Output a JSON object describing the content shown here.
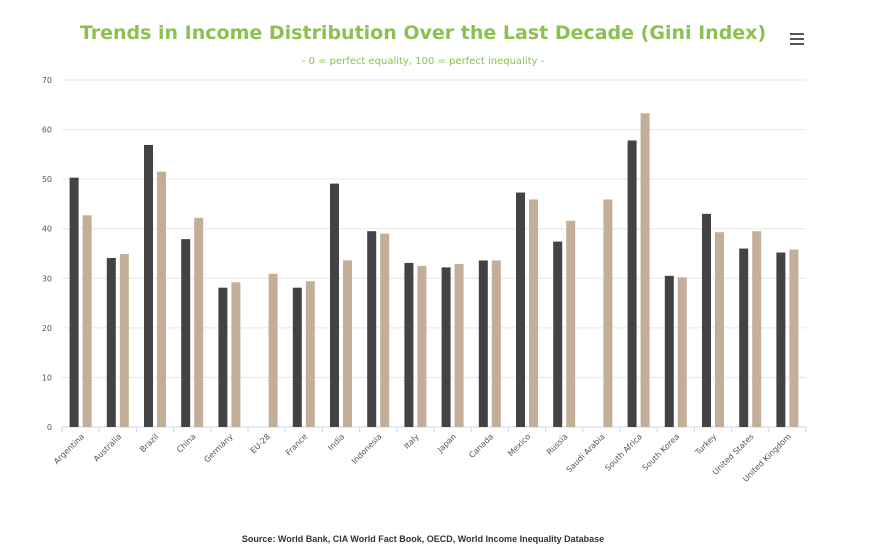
{
  "chart_data": {
    "type": "bar",
    "title": "Trends in Income Distribution Over the Last Decade (Gini Index)",
    "subtitle": "- 0 = perfect equality, 100 = perfect inequality -",
    "source": "Source: World Bank, CIA World Fact Book, OECD, World Income Inequality Database",
    "xlabel": "",
    "ylabel": "",
    "ylim": [
      0,
      70
    ],
    "yticks": [
      0,
      10,
      20,
      30,
      40,
      50,
      60,
      70
    ],
    "grid": true,
    "legend": "none",
    "categories": [
      "Argentina",
      "Australia",
      "Brazil",
      "China",
      "Germany",
      "EU-28",
      "France",
      "India",
      "Indonesia",
      "Italy",
      "Japan",
      "Canada",
      "Mexico",
      "Russia",
      "Saudi Arabia",
      "South Africa",
      "South Korea",
      "Turkey",
      "United States",
      "United Kingdom"
    ],
    "series": [
      {
        "color": "#434343",
        "values": [
          50.3,
          34.1,
          56.9,
          37.9,
          28.1,
          null,
          28.1,
          49.1,
          39.5,
          33.1,
          32.2,
          33.6,
          47.3,
          37.4,
          null,
          57.8,
          30.5,
          43.0,
          36.0,
          35.2
        ]
      },
      {
        "color": "#c3af98",
        "values": [
          42.7,
          34.9,
          51.5,
          42.2,
          29.2,
          30.9,
          29.4,
          33.6,
          39.0,
          32.5,
          32.9,
          33.6,
          45.9,
          41.6,
          45.9,
          63.3,
          30.2,
          39.3,
          39.5,
          35.8
        ]
      }
    ]
  }
}
